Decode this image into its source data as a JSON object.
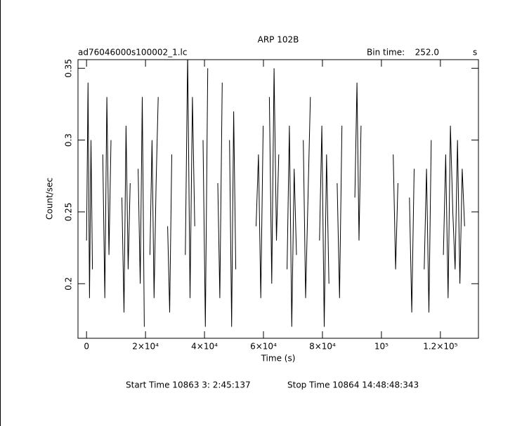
{
  "chart_data": {
    "type": "line",
    "title": "ARP 102B",
    "file_name": "ad76046000s100002_1.lc",
    "bin_time_label": "Bin time:",
    "bin_time": "252.0",
    "bin_time_unit": "s",
    "x_label": "Time (s)",
    "y_label": "Count/sec",
    "start_time": "Start Time 10863  3: 2:45:137",
    "stop_time": "Stop Time 10864 14:48:48:343",
    "color": "#000000",
    "xlim": [
      -2900,
      132900
    ],
    "ylim": [
      0.162,
      0.356
    ],
    "xticks": [
      0,
      {
        "value": 20000,
        "label": "2×10⁴"
      },
      {
        "value": 40000,
        "label": "4×10⁴"
      },
      {
        "value": 60000,
        "label": "6×10⁴"
      },
      {
        "value": 80000,
        "label": "8×10⁴"
      },
      {
        "value": 100000,
        "label": "10⁵"
      },
      {
        "value": 120000,
        "label": "1.2×10⁵"
      }
    ],
    "yticks": [
      0.2,
      0.25,
      0.3,
      0.35
    ],
    "x": [
      0,
      500,
      1000,
      1500,
      2000,
      null,
      5500,
      6200,
      6900,
      7600,
      8300,
      null,
      12000,
      12700,
      13400,
      14100,
      14800,
      null,
      17500,
      18200,
      18900,
      19600,
      null,
      21500,
      22200,
      22900,
      23600,
      24300,
      null,
      27500,
      28200,
      28900,
      null,
      33500,
      34300,
      35100,
      35900,
      36700,
      null,
      39500,
      40300,
      41100,
      null,
      44500,
      45200,
      46000,
      null,
      48500,
      49200,
      49900,
      50600,
      null,
      57500,
      58300,
      59100,
      59900,
      null,
      62000,
      62800,
      63600,
      64400,
      65200,
      null,
      68000,
      68800,
      69600,
      70400,
      71200,
      null,
      73500,
      74300,
      75100,
      75900,
      null,
      79000,
      79800,
      80600,
      81400,
      82200,
      null,
      85000,
      85800,
      86600,
      null,
      91000,
      91700,
      92400,
      93100,
      null,
      104000,
      104800,
      105600,
      null,
      109500,
      110300,
      111100,
      null,
      114500,
      115300,
      116100,
      116900,
      null,
      121000,
      121800,
      122600,
      123400,
      124200,
      125000,
      125800,
      126600,
      127400,
      128200
    ],
    "values": [
      0.23,
      0.34,
      0.19,
      0.3,
      0.21,
      null,
      0.29,
      0.19,
      0.33,
      0.22,
      0.3,
      null,
      0.26,
      0.18,
      0.31,
      0.21,
      0.27,
      null,
      0.28,
      0.2,
      0.33,
      0.17,
      null,
      0.22,
      0.3,
      0.19,
      0.27,
      0.33,
      null,
      0.24,
      0.18,
      0.29,
      null,
      0.22,
      0.36,
      0.19,
      0.33,
      0.24,
      null,
      0.3,
      0.17,
      0.35,
      null,
      0.27,
      0.19,
      0.34,
      null,
      0.3,
      0.17,
      0.32,
      0.21,
      null,
      0.24,
      0.29,
      0.19,
      0.31,
      null,
      0.33,
      0.2,
      0.35,
      0.23,
      0.29,
      null,
      0.21,
      0.31,
      0.17,
      0.28,
      0.22,
      null,
      0.3,
      0.19,
      0.26,
      0.33,
      null,
      0.23,
      0.31,
      0.17,
      0.29,
      0.2,
      null,
      0.27,
      0.19,
      0.31,
      null,
      0.26,
      0.34,
      0.23,
      0.31,
      null,
      0.29,
      0.21,
      0.27,
      null,
      0.26,
      0.18,
      0.28,
      null,
      0.21,
      0.28,
      0.18,
      0.3,
      null,
      0.22,
      0.29,
      0.19,
      0.31,
      0.25,
      0.21,
      0.3,
      0.2,
      0.28,
      0.24
    ]
  }
}
